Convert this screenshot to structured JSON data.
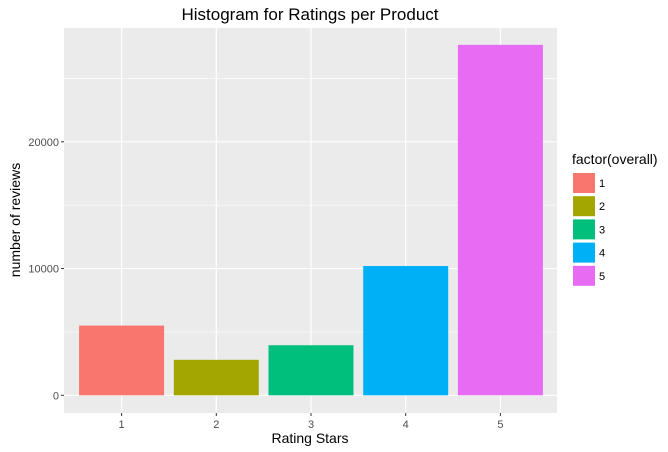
{
  "chart_data": {
    "type": "bar",
    "title": "Histogram for Ratings per Product",
    "xlabel": "Rating Stars",
    "ylabel": "number of reviews",
    "categories": [
      "1",
      "2",
      "3",
      "4",
      "5"
    ],
    "values": [
      5500,
      2800,
      3950,
      10200,
      27650
    ],
    "ylim": [
      0,
      29000
    ],
    "yticks": [
      0,
      10000,
      20000
    ],
    "ytick_labels": [
      "0",
      "10000",
      "20000"
    ],
    "grid": true,
    "legend": {
      "title": "factor(overall)",
      "placement": "right",
      "entries": [
        "1",
        "2",
        "3",
        "4",
        "5"
      ]
    },
    "colors": [
      "#F8766D",
      "#A3A500",
      "#00BF7D",
      "#00B0F6",
      "#E76BF3"
    ],
    "panel_background": "#EBEBEB",
    "grid_color": "#FFFFFF"
  }
}
